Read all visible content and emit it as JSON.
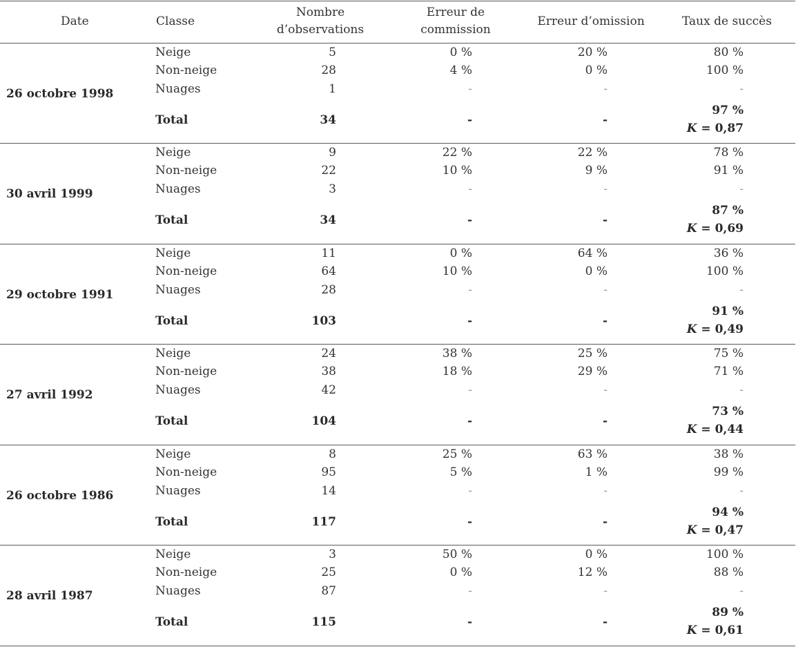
{
  "headers": {
    "date": "Date",
    "classe": "Classe",
    "nombre_line1": "Nombre",
    "nombre_line2": "d’observations",
    "commission_line1": "Erreur de",
    "commission_line2": "commission",
    "omission": "Erreur d’omission",
    "taux": "Taux de succès"
  },
  "labels": {
    "neige": "Neige",
    "non_neige": "Non-neige",
    "nuages": "Nuages",
    "total": "Total",
    "kappa_symbol": "K",
    "kappa_eq": " = "
  },
  "groups": [
    {
      "date": "26 octobre 1998",
      "neige": {
        "nb": "5",
        "com": "0 %",
        "omi": "20 %",
        "taux": "80 %"
      },
      "non_neige": {
        "nb": "28",
        "com": "4 %",
        "omi": "0 %",
        "taux": "100 %"
      },
      "nuages": {
        "nb": "1",
        "com": "-",
        "omi": "-",
        "taux": "-"
      },
      "total": {
        "nb": "34",
        "com": "-",
        "omi": "-",
        "taux": "97 %",
        "kappa": "0,87"
      }
    },
    {
      "date": "30 avril 1999",
      "neige": {
        "nb": "9",
        "com": "22 %",
        "omi": "22 %",
        "taux": "78 %"
      },
      "non_neige": {
        "nb": "22",
        "com": "10 %",
        "omi": "9 %",
        "taux": "91 %"
      },
      "nuages": {
        "nb": "3",
        "com": "-",
        "omi": "-",
        "taux": "-"
      },
      "total": {
        "nb": "34",
        "com": "-",
        "omi": "-",
        "taux": "87 %",
        "kappa": "0,69"
      }
    },
    {
      "date": "29 octobre 1991",
      "neige": {
        "nb": "11",
        "com": "0 %",
        "omi": "64 %",
        "taux": "36 %"
      },
      "non_neige": {
        "nb": "64",
        "com": "10 %",
        "omi": "0 %",
        "taux": "100 %"
      },
      "nuages": {
        "nb": "28",
        "com": "-",
        "omi": "-",
        "taux": "-"
      },
      "total": {
        "nb": "103",
        "com": "-",
        "omi": "-",
        "taux": "91 %",
        "kappa": "0,49"
      }
    },
    {
      "date": "27 avril 1992",
      "neige": {
        "nb": "24",
        "com": "38 %",
        "omi": "25 %",
        "taux": "75 %"
      },
      "non_neige": {
        "nb": "38",
        "com": "18 %",
        "omi": "29 %",
        "taux": "71 %"
      },
      "nuages": {
        "nb": "42",
        "com": "-",
        "omi": "-",
        "taux": "-"
      },
      "total": {
        "nb": "104",
        "com": "-",
        "omi": "-",
        "taux": "73 %",
        "kappa": "0,44"
      }
    },
    {
      "date": "26 octobre 1986",
      "neige": {
        "nb": "8",
        "com": "25 %",
        "omi": "63 %",
        "taux": "38 %"
      },
      "non_neige": {
        "nb": "95",
        "com": "5 %",
        "omi": "1 %",
        "taux": "99 %"
      },
      "nuages": {
        "nb": "14",
        "com": "-",
        "omi": "-",
        "taux": "-"
      },
      "total": {
        "nb": "117",
        "com": "-",
        "omi": "-",
        "taux": "94 %",
        "kappa": "0,47"
      }
    },
    {
      "date": "28 avril 1987",
      "neige": {
        "nb": "3",
        "com": "50 %",
        "omi": "0 %",
        "taux": "100 %"
      },
      "non_neige": {
        "nb": "25",
        "com": "0 %",
        "omi": "12 %",
        "taux": "88 %"
      },
      "nuages": {
        "nb": "87",
        "com": "-",
        "omi": "-",
        "taux": "-"
      },
      "total": {
        "nb": "115",
        "com": "-",
        "omi": "-",
        "taux": "89 %",
        "kappa": "0,61"
      }
    }
  ]
}
